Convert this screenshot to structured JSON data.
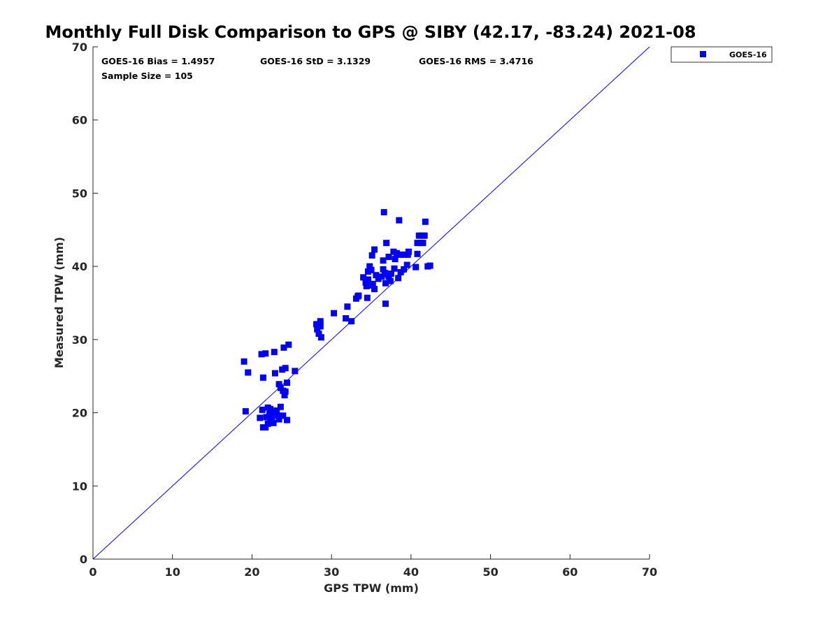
{
  "chart_data": {
    "type": "scatter",
    "title": "Monthly Full Disk Comparison to GPS @ SIBY (42.17, -83.24) 2021-08",
    "xlabel": "GPS TPW (mm)",
    "ylabel": "Measured TPW (mm)",
    "xlim": [
      0,
      70
    ],
    "ylim": [
      0,
      70
    ],
    "xticks": [
      "0",
      "10",
      "20",
      "30",
      "40",
      "50",
      "60",
      "70"
    ],
    "yticks": [
      "0",
      "10",
      "20",
      "30",
      "40",
      "50",
      "60",
      "70"
    ],
    "grid": false,
    "legend_position": "outside-top-right",
    "reference_line": {
      "x": [
        0,
        70
      ],
      "y": [
        0,
        70
      ],
      "color": "#0000ff"
    },
    "stats": {
      "bias": "GOES-16 Bias = 1.4957",
      "std": "GOES-16 StD = 3.1329",
      "rms": "GOES-16 RMS = 3.4716",
      "sample": "Sample Size = 105"
    },
    "series": [
      {
        "name": "GOES-16",
        "color": "#0000ff",
        "marker": "square",
        "points": [
          [
            19.0,
            27.0
          ],
          [
            19.2,
            20.2
          ],
          [
            19.5,
            25.5
          ],
          [
            21.0,
            19.3
          ],
          [
            21.2,
            28.0
          ],
          [
            21.3,
            20.4
          ],
          [
            21.4,
            24.8
          ],
          [
            21.4,
            18.0
          ],
          [
            21.7,
            28.1
          ],
          [
            21.7,
            18.0
          ],
          [
            21.8,
            19.4
          ],
          [
            22.0,
            20.7
          ],
          [
            22.0,
            18.5
          ],
          [
            22.2,
            19.8
          ],
          [
            22.3,
            20.5
          ],
          [
            22.3,
            19.0
          ],
          [
            22.4,
            18.7
          ],
          [
            22.5,
            19.3
          ],
          [
            22.7,
            18.6
          ],
          [
            22.7,
            20.0
          ],
          [
            22.8,
            28.3
          ],
          [
            22.9,
            25.4
          ],
          [
            23.0,
            19.9
          ],
          [
            23.1,
            20.3
          ],
          [
            23.3,
            19.6
          ],
          [
            23.4,
            23.9
          ],
          [
            23.4,
            19.1
          ],
          [
            23.6,
            20.8
          ],
          [
            23.6,
            23.4
          ],
          [
            23.8,
            25.9
          ],
          [
            23.9,
            19.6
          ],
          [
            23.9,
            23.0
          ],
          [
            24.0,
            28.9
          ],
          [
            24.1,
            22.4
          ],
          [
            24.2,
            26.1
          ],
          [
            24.2,
            22.9
          ],
          [
            24.4,
            19.0
          ],
          [
            24.4,
            24.1
          ],
          [
            24.6,
            29.3
          ],
          [
            25.4,
            25.7
          ],
          [
            28.1,
            32.1
          ],
          [
            28.2,
            31.4
          ],
          [
            28.4,
            30.8
          ],
          [
            28.6,
            32.5
          ],
          [
            28.6,
            31.8
          ],
          [
            28.7,
            30.3
          ],
          [
            30.3,
            33.6
          ],
          [
            31.8,
            32.9
          ],
          [
            32.0,
            34.5
          ],
          [
            32.5,
            32.5
          ],
          [
            33.1,
            35.6
          ],
          [
            33.3,
            35.9
          ],
          [
            33.4,
            36.0
          ],
          [
            34.0,
            38.5
          ],
          [
            34.3,
            37.8
          ],
          [
            34.4,
            37.3
          ],
          [
            34.5,
            35.7
          ],
          [
            34.6,
            39.3
          ],
          [
            34.6,
            38.2
          ],
          [
            34.8,
            40.0
          ],
          [
            34.9,
            37.4
          ],
          [
            35.0,
            39.5
          ],
          [
            35.1,
            41.5
          ],
          [
            35.2,
            37.6
          ],
          [
            35.4,
            42.3
          ],
          [
            35.4,
            36.9
          ],
          [
            35.6,
            38.8
          ],
          [
            35.9,
            38.3
          ],
          [
            36.3,
            38.6
          ],
          [
            36.5,
            40.8
          ],
          [
            36.5,
            39.6
          ],
          [
            36.6,
            47.4
          ],
          [
            36.7,
            39.1
          ],
          [
            36.8,
            34.9
          ],
          [
            36.8,
            37.7
          ],
          [
            36.9,
            43.2
          ],
          [
            37.0,
            38.9
          ],
          [
            37.2,
            41.3
          ],
          [
            37.2,
            38.6
          ],
          [
            37.4,
            38.0
          ],
          [
            37.5,
            39.0
          ],
          [
            37.8,
            42.0
          ],
          [
            37.9,
            39.7
          ],
          [
            38.0,
            41.0
          ],
          [
            38.2,
            41.8
          ],
          [
            38.4,
            38.4
          ],
          [
            38.5,
            46.3
          ],
          [
            38.6,
            41.6
          ],
          [
            38.7,
            39.2
          ],
          [
            39.1,
            41.6
          ],
          [
            39.1,
            39.6
          ],
          [
            39.5,
            40.2
          ],
          [
            39.6,
            41.6
          ],
          [
            39.7,
            42.0
          ],
          [
            40.6,
            39.9
          ],
          [
            40.8,
            43.2
          ],
          [
            40.8,
            41.7
          ],
          [
            41.0,
            44.2
          ],
          [
            41.2,
            43.2
          ],
          [
            41.4,
            44.2
          ],
          [
            41.5,
            43.2
          ],
          [
            41.7,
            44.2
          ],
          [
            41.8,
            46.1
          ],
          [
            42.4,
            40.1
          ],
          [
            42.1,
            40.0
          ]
        ]
      }
    ]
  }
}
